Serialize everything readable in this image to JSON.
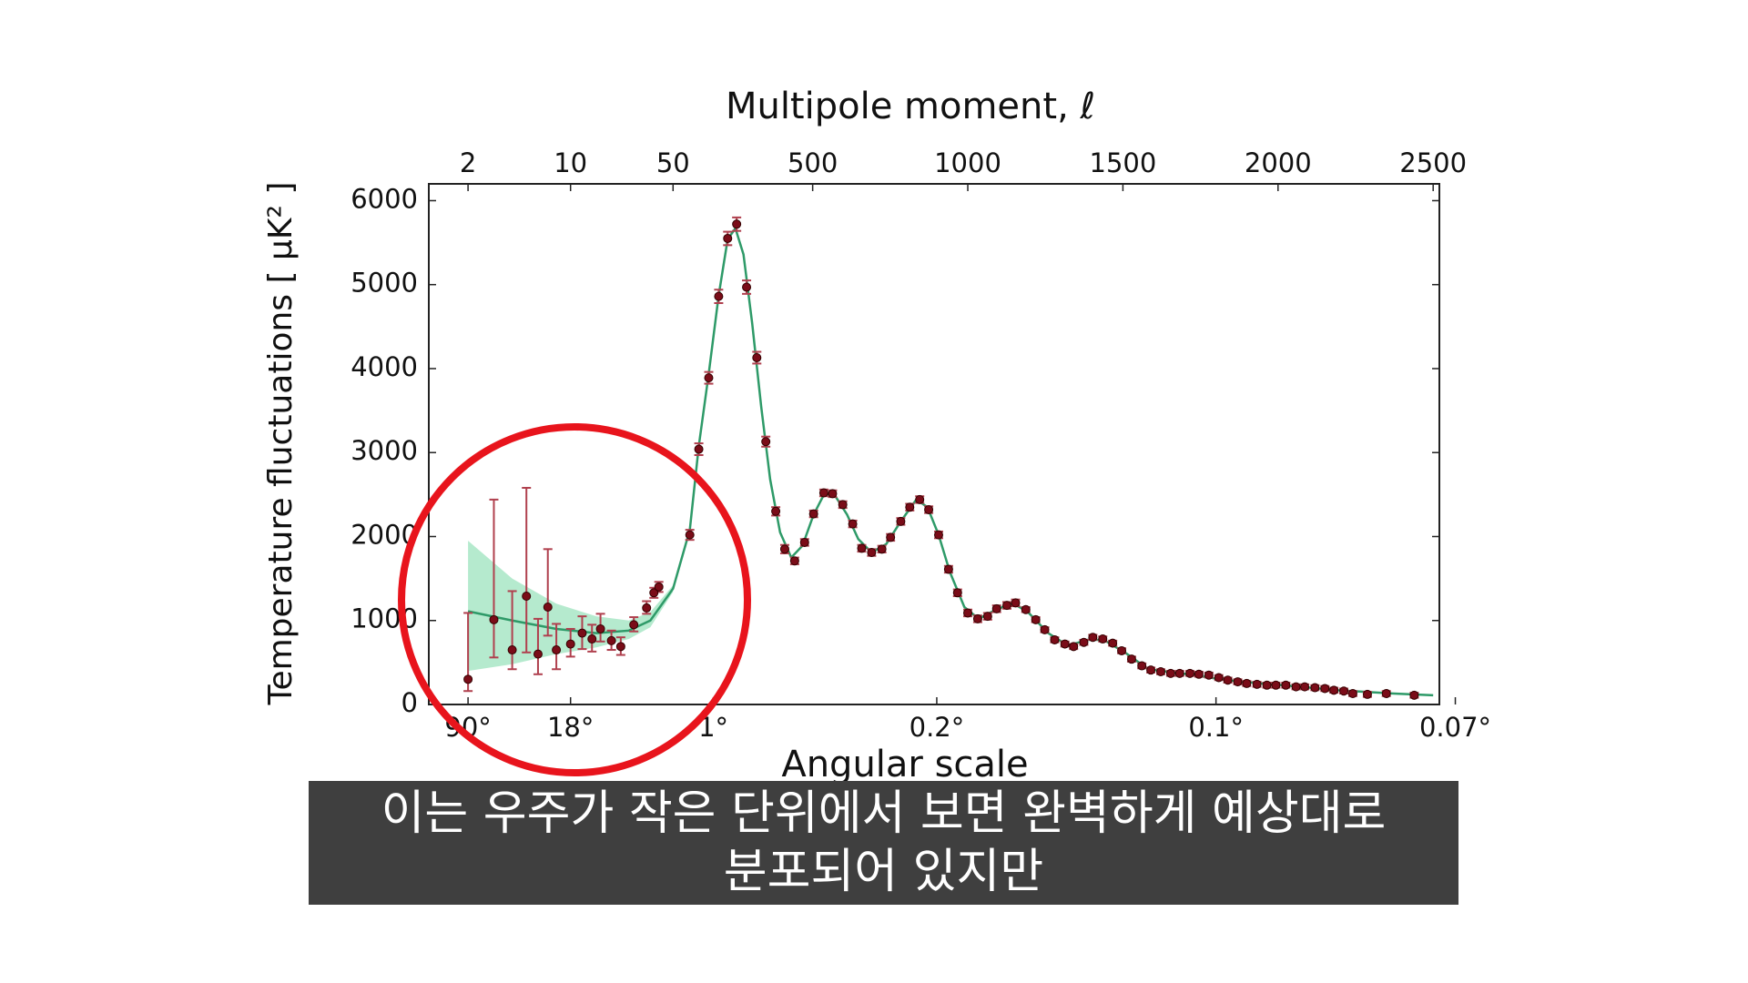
{
  "chart_data": {
    "type": "scatter",
    "title": "Multipole moment, ℓ",
    "x_label": "Angular scale",
    "y_label": "Temperature fluctuations [ μK² ]",
    "xscale": "log-linear",
    "xbreak": 50,
    "xlim": [
      1.08,
      2520
    ],
    "ylim": [
      0,
      6200
    ],
    "xticks": [
      2,
      10,
      50,
      500,
      1000,
      1500,
      2000,
      2500
    ],
    "x2ticks": [
      {
        "value": 90,
        "label": "90°"
      },
      {
        "value": 18,
        "label": "18°"
      },
      {
        "value": 1,
        "label": "1°"
      },
      {
        "value": 0.2,
        "label": "0.2°"
      },
      {
        "value": 0.1,
        "label": "0.1°"
      },
      {
        "value": 0.07,
        "label": "0.07°"
      }
    ],
    "yticks": [
      0,
      1000,
      2000,
      3000,
      4000,
      5000,
      6000
    ],
    "series": [
      {
        "color": "#7a0c18",
        "error_color": "#b0404e",
        "x": [
          2,
          3,
          4,
          5,
          6,
          7,
          8,
          10,
          12,
          14,
          16,
          19,
          22,
          27,
          33,
          37,
          40,
          104,
          133,
          165,
          197,
          226,
          255,
          287,
          320,
          349,
          381,
          410,
          442,
          474,
          503,
          536,
          564,
          597,
          629,
          658,
          690,
          723,
          751,
          784,
          813,
          845,
          874,
          906,
          938,
          967,
          1000,
          1032,
          1064,
          1093,
          1126,
          1154,
          1187,
          1219,
          1248,
          1280,
          1313,
          1341,
          1374,
          1403,
          1435,
          1467,
          1496,
          1528,
          1561,
          1590,
          1622,
          1654,
          1683,
          1716,
          1745,
          1777,
          1809,
          1838,
          1870,
          1899,
          1932,
          1964,
          1993,
          2025,
          2058,
          2086,
          2119,
          2151,
          2180,
          2212,
          2241,
          2288,
          2349,
          2439
        ],
        "values": [
          300,
          1010,
          650,
          1290,
          600,
          1160,
          650,
          720,
          850,
          780,
          900,
          760,
          690,
          950,
          1150,
          1330,
          1400,
          2020,
          3040,
          3890,
          4860,
          5550,
          5720,
          4970,
          4130,
          3130,
          2300,
          1850,
          1710,
          1930,
          2270,
          2520,
          2510,
          2380,
          2150,
          1860,
          1810,
          1850,
          1990,
          2180,
          2350,
          2440,
          2320,
          2020,
          1610,
          1330,
          1090,
          1020,
          1050,
          1140,
          1180,
          1210,
          1130,
          1010,
          890,
          770,
          720,
          690,
          740,
          800,
          780,
          730,
          640,
          540,
          460,
          410,
          390,
          370,
          370,
          370,
          360,
          350,
          320,
          290,
          270,
          250,
          240,
          230,
          230,
          230,
          210,
          210,
          200,
          190,
          170,
          160,
          130,
          120,
          130,
          110
        ],
        "error_minus": [
          140,
          450,
          230,
          670,
          240,
          340,
          230,
          150,
          190,
          150,
          150,
          110,
          100,
          80,
          70,
          60,
          60,
          60,
          70,
          70,
          80,
          80,
          80,
          80,
          70,
          60,
          50,
          50,
          40,
          40,
          40,
          40,
          40,
          40,
          40,
          40,
          40,
          40,
          40,
          40,
          40,
          40,
          40,
          40,
          40,
          40,
          40,
          40,
          40,
          40,
          40,
          40,
          30,
          30,
          30,
          30,
          30,
          30,
          30,
          30,
          30,
          30,
          30,
          30,
          30,
          30,
          30,
          30,
          30,
          30,
          30,
          30,
          30,
          30,
          30,
          30,
          30,
          30,
          30,
          30,
          30,
          30,
          30,
          30,
          30,
          30,
          30,
          30,
          30,
          30
        ],
        "error_plus": [
          790,
          1430,
          700,
          1290,
          420,
          690,
          310,
          180,
          200,
          170,
          180,
          120,
          110,
          90,
          80,
          60,
          60,
          60,
          70,
          70,
          80,
          80,
          80,
          80,
          70,
          60,
          50,
          50,
          40,
          40,
          40,
          40,
          40,
          40,
          40,
          40,
          40,
          40,
          40,
          40,
          40,
          40,
          40,
          40,
          40,
          40,
          40,
          40,
          40,
          40,
          40,
          40,
          30,
          30,
          30,
          30,
          30,
          30,
          30,
          30,
          30,
          30,
          30,
          30,
          30,
          30,
          30,
          30,
          30,
          30,
          30,
          30,
          30,
          30,
          30,
          30,
          30,
          30,
          30,
          30,
          30,
          30,
          30,
          30,
          30,
          30,
          30,
          30,
          30,
          30
        ]
      }
    ],
    "model": {
      "color": "#2e9a68",
      "x": [
        2,
        4,
        8,
        15,
        25,
        35,
        50,
        104,
        133,
        165,
        197,
        226,
        251,
        277,
        305,
        334,
        363,
        395,
        431,
        467,
        503,
        539,
        575,
        611,
        647,
        690,
        737,
        784,
        834,
        870,
        906,
        942,
        989,
        1035,
        1086,
        1144,
        1194,
        1259,
        1323,
        1385,
        1438,
        1510,
        1582,
        1690,
        1834,
        2014,
        2194,
        2374,
        2500
      ],
      "values": [
        1110,
        1000,
        900,
        850,
        880,
        1000,
        1380,
        2080,
        3080,
        3940,
        4870,
        5540,
        5670,
        5360,
        4540,
        3550,
        2680,
        2050,
        1750,
        1890,
        2260,
        2520,
        2470,
        2260,
        1970,
        1810,
        1910,
        2180,
        2440,
        2350,
        2020,
        1580,
        1160,
        1020,
        1120,
        1210,
        1100,
        850,
        700,
        770,
        770,
        610,
        420,
        370,
        290,
        230,
        170,
        130,
        110
      ]
    },
    "band": {
      "color": "#a8e6c6",
      "x": [
        2,
        4,
        8,
        15,
        25,
        35,
        50
      ],
      "upper": [
        1950,
        1500,
        1200,
        1050,
        1000,
        1100,
        1420
      ],
      "lower": [
        400,
        480,
        600,
        680,
        780,
        920,
        1340
      ]
    }
  },
  "caption": [
    "이는 우주가 작은 단위에서 보면 완벽하게 예상대로",
    "분포되어 있지만"
  ]
}
